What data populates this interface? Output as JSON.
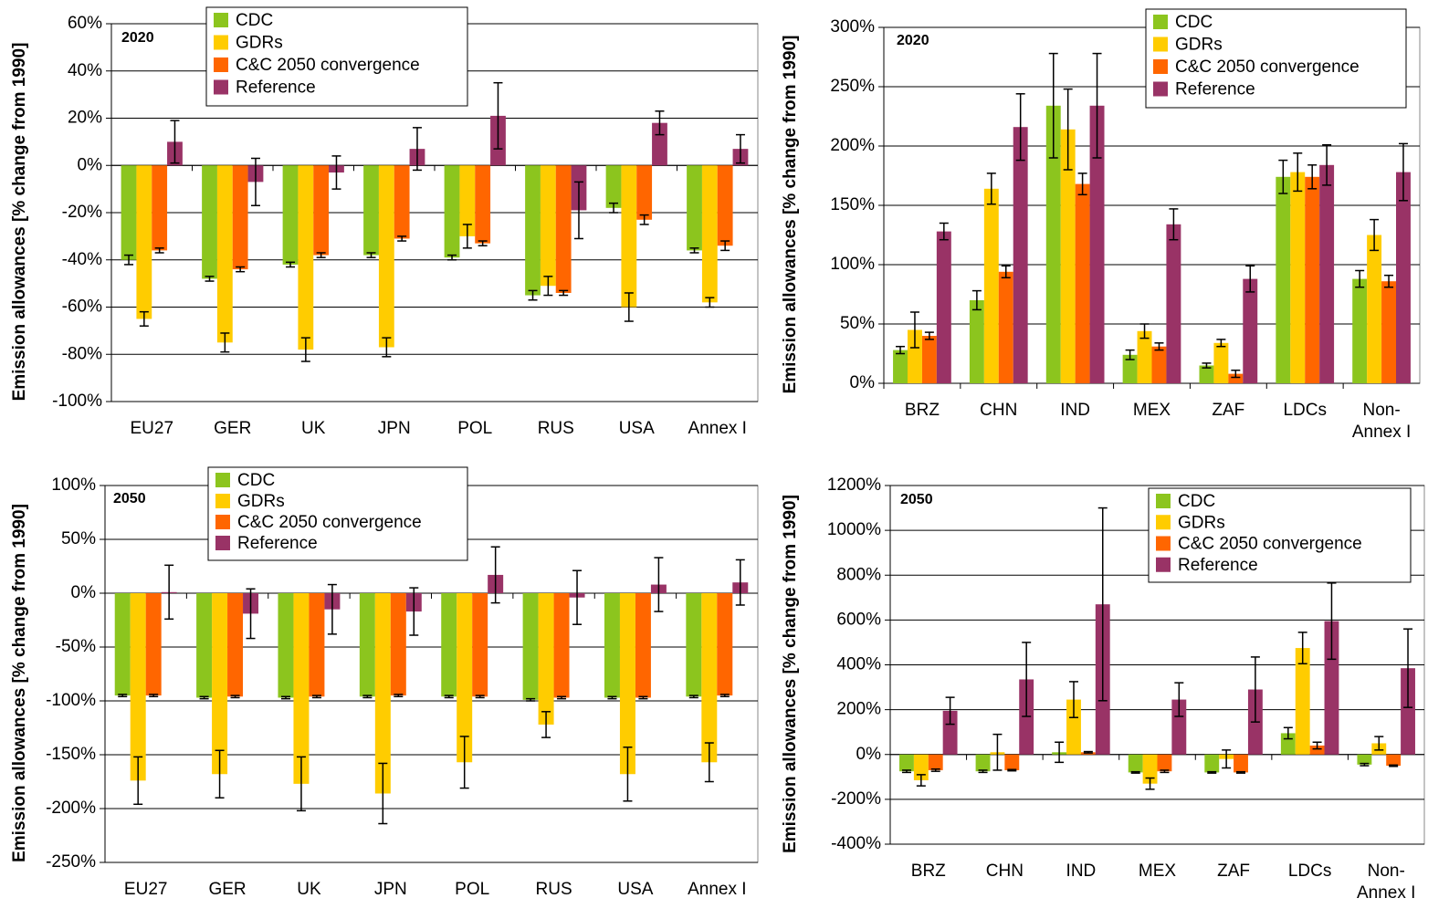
{
  "chart_data": [
    {
      "type": "bar",
      "annotation": "2020",
      "ylabel": "Emission allowances [% change from 1990]",
      "categories": [
        "EU27",
        "GER",
        "UK",
        "JPN",
        "POL",
        "RUS",
        "USA",
        "Annex I"
      ],
      "series": [
        {
          "name": "CDC",
          "color": "#8cc51e",
          "values": [
            -40,
            -48,
            -42,
            -38,
            -39,
            -55,
            -18,
            -36
          ],
          "errors": [
            2,
            1,
            1,
            1,
            1,
            2,
            2,
            1
          ]
        },
        {
          "name": "GDRs",
          "color": "#ffcc00",
          "values": [
            -65,
            -75,
            -78,
            -77,
            -30,
            -51,
            -60,
            -58
          ],
          "errors": [
            3,
            4,
            5,
            4,
            5,
            4,
            6,
            2
          ]
        },
        {
          "name": "C&C 2050 convergence",
          "color": "#ff6600",
          "values": [
            -36,
            -44,
            -38,
            -31,
            -33,
            -54,
            -23,
            -34
          ],
          "errors": [
            1,
            1,
            1,
            1,
            1,
            1,
            2,
            2
          ]
        },
        {
          "name": "Reference",
          "color": "#993366",
          "values": [
            10,
            -7,
            -3,
            7,
            21,
            -19,
            18,
            7
          ],
          "errors": [
            9,
            10,
            7,
            9,
            14,
            12,
            5,
            6
          ]
        }
      ],
      "ylim": [
        -100,
        60
      ],
      "yticks": [
        {
          "value": -100,
          "label": "-100%"
        },
        {
          "value": -80,
          "label": "-80%"
        },
        {
          "value": -60,
          "label": "-60%"
        },
        {
          "value": -40,
          "label": "-40%"
        },
        {
          "value": -20,
          "label": "-20%"
        },
        {
          "value": 0,
          "label": "0%"
        },
        {
          "value": 20,
          "label": "20%"
        },
        {
          "value": 40,
          "label": "40%"
        },
        {
          "value": 60,
          "label": "60%"
        }
      ],
      "grid": true
    },
    {
      "type": "bar",
      "annotation": "2020",
      "ylabel": "Emission allowances [% change from 1990]",
      "categories": [
        "BRZ",
        "CHN",
        "IND",
        "MEX",
        "ZAF",
        "LDCs",
        "Non-\nAnnex I"
      ],
      "series": [
        {
          "name": "CDC",
          "color": "#8cc51e",
          "values": [
            28,
            70,
            234,
            24,
            15,
            174,
            88
          ],
          "errors": [
            3,
            8,
            44,
            4,
            2,
            14,
            7
          ]
        },
        {
          "name": "GDRs",
          "color": "#ffcc00",
          "values": [
            45,
            164,
            214,
            44,
            34,
            178,
            125
          ],
          "errors": [
            15,
            13,
            34,
            6,
            3,
            16,
            13
          ]
        },
        {
          "name": "C&C 2050 convergence",
          "color": "#ff6600",
          "values": [
            40,
            94,
            168,
            31,
            8,
            174,
            86
          ],
          "errors": [
            3,
            5,
            9,
            3,
            3,
            10,
            5
          ]
        },
        {
          "name": "Reference",
          "color": "#993366",
          "values": [
            128,
            216,
            234,
            134,
            88,
            184,
            178
          ],
          "errors": [
            7,
            28,
            44,
            13,
            11,
            17,
            24
          ]
        }
      ],
      "ylim": [
        0,
        300
      ],
      "yticks": [
        {
          "value": 0,
          "label": "0%"
        },
        {
          "value": 50,
          "label": "50%"
        },
        {
          "value": 100,
          "label": "100%"
        },
        {
          "value": 150,
          "label": "150%"
        },
        {
          "value": 200,
          "label": "200%"
        },
        {
          "value": 250,
          "label": "250%"
        },
        {
          "value": 300,
          "label": "300%"
        }
      ],
      "grid": true
    },
    {
      "type": "bar",
      "annotation": "2050",
      "ylabel": "Emission allowances [% change from 1990]",
      "categories": [
        "EU27",
        "GER",
        "UK",
        "JPN",
        "POL",
        "RUS",
        "USA",
        "Annex I"
      ],
      "series": [
        {
          "name": "CDC",
          "color": "#8cc51e",
          "values": [
            -95,
            -97,
            -97,
            -96,
            -96,
            -99,
            -97,
            -96
          ],
          "errors": [
            1,
            1,
            1,
            1,
            1,
            1,
            1,
            1
          ]
        },
        {
          "name": "GDRs",
          "color": "#ffcc00",
          "values": [
            -174,
            -168,
            -177,
            -186,
            -157,
            -122,
            -168,
            -157
          ],
          "errors": [
            22,
            22,
            25,
            28,
            24,
            12,
            25,
            18
          ]
        },
        {
          "name": "C&C 2050 convergence",
          "color": "#ff6600",
          "values": [
            -95,
            -96,
            -96,
            -95,
            -96,
            -97,
            -97,
            -95
          ],
          "errors": [
            1,
            1,
            1,
            1,
            1,
            1,
            1,
            1
          ]
        },
        {
          "name": "Reference",
          "color": "#993366",
          "values": [
            1,
            -19,
            -15,
            -17,
            17,
            -4,
            8,
            10
          ],
          "errors": [
            25,
            23,
            23,
            22,
            26,
            25,
            25,
            21
          ]
        }
      ],
      "ylim": [
        -250,
        100
      ],
      "yticks": [
        {
          "value": -250,
          "label": "-250%"
        },
        {
          "value": -200,
          "label": "-200%"
        },
        {
          "value": -150,
          "label": "-150%"
        },
        {
          "value": -100,
          "label": "-100%"
        },
        {
          "value": -50,
          "label": "-50%"
        },
        {
          "value": 0,
          "label": "0%"
        },
        {
          "value": 50,
          "label": "50%"
        },
        {
          "value": 100,
          "label": "100%"
        }
      ],
      "grid": true
    },
    {
      "type": "bar",
      "annotation": "2050",
      "ylabel": "Emission allowances [% change from 1990]",
      "categories": [
        "BRZ",
        "CHN",
        "IND",
        "MEX",
        "ZAF",
        "LDCs",
        "Non-\nAnnex I"
      ],
      "series": [
        {
          "name": "CDC",
          "color": "#8cc51e",
          "values": [
            -75,
            -75,
            10,
            -80,
            -80,
            95,
            -45
          ],
          "errors": [
            5,
            5,
            45,
            3,
            3,
            25,
            5
          ]
        },
        {
          "name": "GDRs",
          "color": "#ffcc00",
          "values": [
            -115,
            10,
            245,
            -130,
            -20,
            475,
            50
          ],
          "errors": [
            25,
            80,
            80,
            25,
            40,
            70,
            30
          ]
        },
        {
          "name": "C&C 2050 convergence",
          "color": "#ff6600",
          "values": [
            -70,
            -70,
            10,
            -75,
            -80,
            40,
            -50
          ],
          "errors": [
            5,
            3,
            3,
            5,
            3,
            15,
            3
          ]
        },
        {
          "name": "Reference",
          "color": "#993366",
          "values": [
            195,
            335,
            670,
            245,
            290,
            595,
            385
          ],
          "errors": [
            60,
            165,
            430,
            75,
            145,
            170,
            175
          ]
        }
      ],
      "ylim": [
        -400,
        1200
      ],
      "yticks": [
        {
          "value": -400,
          "label": "-400%"
        },
        {
          "value": -200,
          "label": "-200%"
        },
        {
          "value": 0,
          "label": "0%"
        },
        {
          "value": 200,
          "label": "200%"
        },
        {
          "value": 400,
          "label": "400%"
        },
        {
          "value": 600,
          "label": "600%"
        },
        {
          "value": 800,
          "label": "800%"
        },
        {
          "value": 1000,
          "label": "1000%"
        },
        {
          "value": 1200,
          "label": "1200%"
        }
      ],
      "grid": true
    }
  ]
}
